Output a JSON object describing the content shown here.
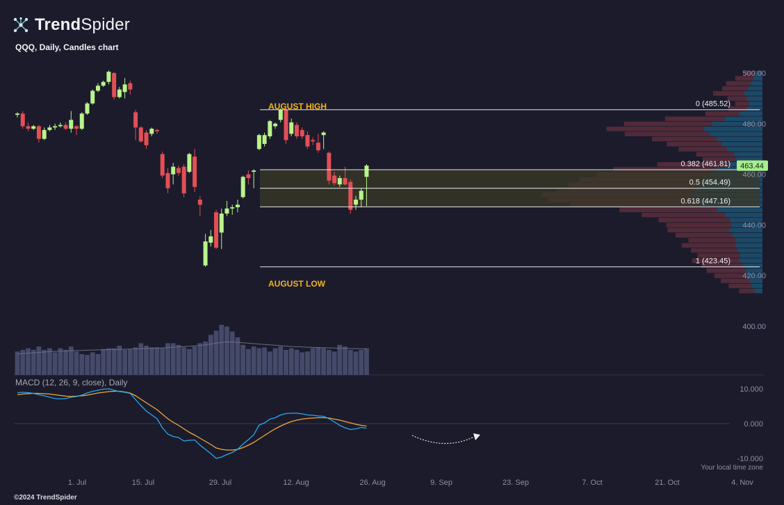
{
  "brand": {
    "name_bold": "Trend",
    "name_light": "Spider",
    "logo_icon": "network-nodes-icon",
    "copyright": "©2024 TrendSpider"
  },
  "chart_title": "QQQ, Daily, Candles chart",
  "colors": {
    "background": "#1b1b2b",
    "up": "#b9f48a",
    "down": "#e24f55",
    "volume": "#454a6a",
    "fib_zone": "#3a3a28",
    "annotation": "#f0b324",
    "macd_line": "#2aa8ee",
    "signal_line": "#f2a93b",
    "last_price_badge": "#a9ee8c"
  },
  "last_price": "463.44",
  "annotations": {
    "august_high": "AUGUST HIGH",
    "august_low": "AUGUST LOW"
  },
  "fib_levels": [
    {
      "label": "0 (485.52)",
      "price": 485.52
    },
    {
      "label": "0.382 (461.81)",
      "price": 461.81
    },
    {
      "label": "0.5 (454.49)",
      "price": 454.49
    },
    {
      "label": "0.618 (447.16)",
      "price": 447.16
    },
    {
      "label": "1 (423.45)",
      "price": 423.45
    }
  ],
  "price_axis": [
    "500.00",
    "480.00",
    "460.00",
    "440.00",
    "420.00",
    "400.00"
  ],
  "macd_axis": [
    "10.000",
    "0.000",
    "-10.000"
  ],
  "x_axis": [
    "1. Jul",
    "15. Jul",
    "29. Jul",
    "12. Aug",
    "26. Aug",
    "9. Sep",
    "23. Sep",
    "7. Oct",
    "21. Oct",
    "4. Nov"
  ],
  "macd_label": "MACD (12, 26, 9, close), Daily",
  "timezone_note": "Your local time zone",
  "chart_data": {
    "type": "candlestick",
    "ylim": [
      395,
      503
    ],
    "x_ticks": [
      "1. Jul",
      "15. Jul",
      "29. Jul",
      "12. Aug",
      "26. Aug",
      "9. Sep",
      "23. Sep",
      "7. Oct",
      "21. Oct",
      "4. Nov"
    ],
    "candles": [
      {
        "o": 483.5,
        "h": 484.5,
        "l": 482.5,
        "c": 484.0
      },
      {
        "o": 484.0,
        "h": 485.0,
        "l": 478.0,
        "c": 479.0
      },
      {
        "o": 479.0,
        "h": 480.5,
        "l": 477.0,
        "c": 478.0
      },
      {
        "o": 478.0,
        "h": 479.5,
        "l": 477.5,
        "c": 479.0
      },
      {
        "o": 479.0,
        "h": 479.5,
        "l": 472.5,
        "c": 474.0
      },
      {
        "o": 474.0,
        "h": 478.5,
        "l": 473.5,
        "c": 477.5
      },
      {
        "o": 477.5,
        "h": 479.5,
        "l": 477.0,
        "c": 478.5
      },
      {
        "o": 478.5,
        "h": 480.0,
        "l": 477.5,
        "c": 479.0
      },
      {
        "o": 479.0,
        "h": 480.5,
        "l": 478.5,
        "c": 479.5
      },
      {
        "o": 479.5,
        "h": 480.5,
        "l": 477.5,
        "c": 478.0
      },
      {
        "o": 478.0,
        "h": 485.0,
        "l": 476.5,
        "c": 481.5
      },
      {
        "o": 479.0,
        "h": 479.5,
        "l": 475.5,
        "c": 478.0
      },
      {
        "o": 478.0,
        "h": 484.5,
        "l": 477.5,
        "c": 484.0
      },
      {
        "o": 484.0,
        "h": 488.5,
        "l": 483.5,
        "c": 488.0
      },
      {
        "o": 488.0,
        "h": 493.5,
        "l": 487.5,
        "c": 493.0
      },
      {
        "o": 493.0,
        "h": 496.0,
        "l": 492.5,
        "c": 495.0
      },
      {
        "o": 495.0,
        "h": 497.0,
        "l": 494.5,
        "c": 496.5
      },
      {
        "o": 496.5,
        "h": 501.0,
        "l": 495.5,
        "c": 500.5
      },
      {
        "o": 500.0,
        "h": 500.5,
        "l": 489.5,
        "c": 490.5
      },
      {
        "o": 490.5,
        "h": 494.5,
        "l": 490.0,
        "c": 493.5
      },
      {
        "o": 492.5,
        "h": 498.0,
        "l": 490.0,
        "c": 495.5
      },
      {
        "o": 496.0,
        "h": 497.0,
        "l": 491.5,
        "c": 493.5
      },
      {
        "o": 484.5,
        "h": 485.5,
        "l": 473.5,
        "c": 478.5
      },
      {
        "o": 478.5,
        "h": 479.0,
        "l": 472.5,
        "c": 473.0
      },
      {
        "o": 476.5,
        "h": 477.5,
        "l": 470.0,
        "c": 471.5
      },
      {
        "o": 476.0,
        "h": 478.5,
        "l": 475.0,
        "c": 478.0
      },
      {
        "o": 477.5,
        "h": 478.0,
        "l": 476.0,
        "c": 477.0
      },
      {
        "o": 468.0,
        "h": 469.0,
        "l": 458.5,
        "c": 459.5
      },
      {
        "o": 460.5,
        "h": 462.5,
        "l": 452.5,
        "c": 454.5
      },
      {
        "o": 460.0,
        "h": 464.5,
        "l": 456.0,
        "c": 463.0
      },
      {
        "o": 462.5,
        "h": 463.5,
        "l": 459.5,
        "c": 460.5
      },
      {
        "o": 463.0,
        "h": 464.0,
        "l": 451.0,
        "c": 452.5
      },
      {
        "o": 461.0,
        "h": 468.5,
        "l": 460.5,
        "c": 468.0
      },
      {
        "o": 467.0,
        "h": 470.0,
        "l": 453.0,
        "c": 455.0
      },
      {
        "o": 450.0,
        "h": 451.5,
        "l": 443.5,
        "c": 448.0
      },
      {
        "o": 424.0,
        "h": 436.5,
        "l": 423.5,
        "c": 433.5
      },
      {
        "o": 433.0,
        "h": 438.0,
        "l": 431.5,
        "c": 435.5
      },
      {
        "o": 445.0,
        "h": 446.0,
        "l": 430.5,
        "c": 431.0
      },
      {
        "o": 437.0,
        "h": 446.5,
        "l": 430.5,
        "c": 444.5
      },
      {
        "o": 444.5,
        "h": 449.5,
        "l": 443.5,
        "c": 446.5
      },
      {
        "o": 446.5,
        "h": 448.0,
        "l": 444.0,
        "c": 447.0
      },
      {
        "o": 447.0,
        "h": 450.0,
        "l": 445.0,
        "c": 448.0
      },
      {
        "o": 451.0,
        "h": 459.5,
        "l": 450.5,
        "c": 459.0
      },
      {
        "o": 460.0,
        "h": 461.5,
        "l": 456.0,
        "c": 458.5
      },
      {
        "o": 461.0,
        "h": 462.0,
        "l": 454.5,
        "c": 461.5
      },
      {
        "o": 470.0,
        "h": 476.0,
        "l": 469.5,
        "c": 475.5
      },
      {
        "o": 472.0,
        "h": 476.5,
        "l": 471.0,
        "c": 475.5
      },
      {
        "o": 475.0,
        "h": 481.5,
        "l": 474.0,
        "c": 481.0
      },
      {
        "o": 479.0,
        "h": 480.5,
        "l": 478.0,
        "c": 480.0
      },
      {
        "o": 481.5,
        "h": 486.0,
        "l": 480.5,
        "c": 485.5
      },
      {
        "o": 485.5,
        "h": 486.0,
        "l": 472.0,
        "c": 473.5
      },
      {
        "o": 476.0,
        "h": 482.0,
        "l": 475.0,
        "c": 480.5
      },
      {
        "o": 479.5,
        "h": 480.5,
        "l": 474.0,
        "c": 475.0
      },
      {
        "o": 477.5,
        "h": 478.5,
        "l": 474.0,
        "c": 475.0
      },
      {
        "o": 475.5,
        "h": 477.0,
        "l": 470.0,
        "c": 471.0
      },
      {
        "o": 473.5,
        "h": 474.5,
        "l": 471.5,
        "c": 473.0
      },
      {
        "o": 472.5,
        "h": 476.0,
        "l": 468.5,
        "c": 469.5
      },
      {
        "o": 475.5,
        "h": 477.0,
        "l": 470.0,
        "c": 476.5
      },
      {
        "o": 468.5,
        "h": 469.0,
        "l": 456.0,
        "c": 457.5
      },
      {
        "o": 459.5,
        "h": 461.0,
        "l": 455.5,
        "c": 456.5
      },
      {
        "o": 456.0,
        "h": 459.5,
        "l": 455.0,
        "c": 458.5
      },
      {
        "o": 458.5,
        "h": 463.0,
        "l": 455.5,
        "c": 456.0
      },
      {
        "o": 457.0,
        "h": 458.0,
        "l": 444.5,
        "c": 446.0
      },
      {
        "o": 448.0,
        "h": 451.5,
        "l": 446.0,
        "c": 450.0
      },
      {
        "o": 450.0,
        "h": 454.5,
        "l": 447.0,
        "c": 453.5
      },
      {
        "o": 459.0,
        "h": 464.0,
        "l": 447.5,
        "c": 463.44
      }
    ],
    "volume": [
      28,
      30,
      32,
      30,
      34,
      30,
      32,
      27,
      32,
      30,
      34,
      28,
      25,
      24,
      27,
      25,
      31,
      32,
      32,
      35,
      30,
      31,
      33,
      38,
      35,
      33,
      33,
      32,
      38,
      38,
      36,
      33,
      31,
      34,
      38,
      40,
      48,
      53,
      60,
      58,
      52,
      45,
      36,
      31,
      34,
      32,
      33,
      28,
      32,
      34,
      30,
      32,
      30,
      27,
      28,
      32,
      33,
      32,
      30,
      28,
      36,
      34,
      30,
      28,
      30,
      32
    ],
    "volume_ma": [
      25,
      25.5,
      26,
      26.5,
      27,
      27.5,
      28,
      28.2,
      28.5,
      28.8,
      29,
      29.2,
      29.4,
      29.6,
      29.8,
      30,
      30.2,
      30.3,
      30.4,
      30.6,
      30.8,
      31,
      31.2,
      31.4,
      31.8,
      32,
      32.2,
      32.4,
      32.8,
      33.2,
      33.6,
      34,
      34.4,
      34.8,
      35.4,
      36,
      37,
      38,
      39,
      39.5,
      39.5,
      39,
      38.5,
      38,
      37.5,
      37,
      36.5,
      36,
      35.5,
      35,
      34.5,
      34,
      33.8,
      33.5,
      33.2,
      33,
      32.8,
      32.6,
      32.4,
      32.2,
      32,
      31.8,
      31.6,
      31.5,
      31.4,
      31.3
    ],
    "macd": [
      8.9,
      9.0,
      8.9,
      8.7,
      8.3,
      8.0,
      7.6,
      7.2,
      7.1,
      7.2,
      7.6,
      7.8,
      8.2,
      8.8,
      9.3,
      9.6,
      9.9,
      10.0,
      9.6,
      9.2,
      9.0,
      8.7,
      6.9,
      5.2,
      3.6,
      2.5,
      1.4,
      -1.2,
      -3.0,
      -3.7,
      -4.0,
      -5.0,
      -4.8,
      -4.7,
      -6.2,
      -7.4,
      -8.6,
      -10.0,
      -9.6,
      -8.9,
      -8.3,
      -7.4,
      -5.9,
      -4.6,
      -3.2,
      -0.4,
      0.2,
      1.3,
      1.7,
      2.5,
      2.9,
      3.0,
      3.0,
      2.8,
      2.5,
      2.4,
      2.2,
      2.1,
      1.4,
      0.5,
      -0.5,
      -1.2,
      -1.7,
      -1.5,
      -1.1,
      -1.3
    ],
    "signal": [
      8.3,
      8.5,
      8.6,
      8.7,
      8.7,
      8.6,
      8.5,
      8.3,
      8.1,
      7.9,
      7.8,
      7.9,
      8.0,
      8.2,
      8.5,
      8.8,
      9.0,
      9.2,
      9.3,
      9.3,
      9.1,
      8.8,
      8.0,
      7.0,
      6.0,
      5.0,
      4.0,
      2.7,
      1.4,
      0.4,
      -0.5,
      -1.5,
      -2.5,
      -3.3,
      -4.2,
      -5.1,
      -6.0,
      -7.0,
      -7.4,
      -7.6,
      -7.6,
      -7.4,
      -6.9,
      -6.2,
      -5.4,
      -4.4,
      -3.4,
      -2.4,
      -1.5,
      -0.7,
      0.0,
      0.6,
      1.0,
      1.3,
      1.5,
      1.6,
      1.7,
      1.7,
      1.6,
      1.3,
      1.0,
      0.6,
      0.2,
      -0.2,
      -0.5,
      -0.7
    ],
    "volume_profile": [
      {
        "price": 500,
        "buy": 10,
        "sell": 18
      },
      {
        "price": 498,
        "buy": 14,
        "sell": 28
      },
      {
        "price": 496,
        "buy": 18,
        "sell": 38
      },
      {
        "price": 494,
        "buy": 22,
        "sell": 40
      },
      {
        "price": 492,
        "buy": 28,
        "sell": 48
      },
      {
        "price": 490,
        "buy": 24,
        "sell": 30
      },
      {
        "price": 488,
        "buy": 20,
        "sell": 22
      },
      {
        "price": 486,
        "buy": 24,
        "sell": 28
      },
      {
        "price": 484,
        "buy": 36,
        "sell": 52
      },
      {
        "price": 482,
        "buy": 58,
        "sell": 92
      },
      {
        "price": 480,
        "buy": 78,
        "sell": 135
      },
      {
        "price": 478,
        "buy": 90,
        "sell": 150
      },
      {
        "price": 476,
        "buy": 82,
        "sell": 130
      },
      {
        "price": 474,
        "buy": 70,
        "sell": 100
      },
      {
        "price": 472,
        "buy": 62,
        "sell": 85
      },
      {
        "price": 470,
        "buy": 54,
        "sell": 75
      },
      {
        "price": 468,
        "buy": 44,
        "sell": 58
      },
      {
        "price": 466,
        "buy": 40,
        "sell": 52
      },
      {
        "price": 464,
        "buy": 52,
        "sell": 110
      },
      {
        "price": 462,
        "buy": 70,
        "sell": 160
      },
      {
        "price": 460,
        "buy": 80,
        "sell": 175
      },
      {
        "price": 458,
        "buy": 92,
        "sell": 190
      },
      {
        "price": 456,
        "buy": 98,
        "sell": 200
      },
      {
        "price": 454,
        "buy": 102,
        "sell": 215
      },
      {
        "price": 452,
        "buy": 110,
        "sell": 230
      },
      {
        "price": 450,
        "buy": 104,
        "sell": 225
      },
      {
        "price": 448,
        "buy": 96,
        "sell": 200
      },
      {
        "price": 446,
        "buy": 70,
        "sell": 150
      },
      {
        "price": 444,
        "buy": 58,
        "sell": 128
      },
      {
        "price": 442,
        "buy": 50,
        "sell": 110
      },
      {
        "price": 440,
        "buy": 48,
        "sell": 100
      },
      {
        "price": 438,
        "buy": 52,
        "sell": 94
      },
      {
        "price": 436,
        "buy": 46,
        "sell": 88
      },
      {
        "price": 434,
        "buy": 40,
        "sell": 74
      },
      {
        "price": 432,
        "buy": 42,
        "sell": 82
      },
      {
        "price": 430,
        "buy": 38,
        "sell": 72
      },
      {
        "price": 428,
        "buy": 34,
        "sell": 66
      },
      {
        "price": 426,
        "buy": 36,
        "sell": 72
      },
      {
        "price": 424,
        "buy": 30,
        "sell": 64
      },
      {
        "price": 422,
        "buy": 26,
        "sell": 60
      },
      {
        "price": 420,
        "buy": 24,
        "sell": 50
      },
      {
        "price": 418,
        "buy": 20,
        "sell": 44
      },
      {
        "price": 416,
        "buy": 16,
        "sell": 36
      },
      {
        "price": 414,
        "buy": 12,
        "sell": 24
      }
    ]
  }
}
